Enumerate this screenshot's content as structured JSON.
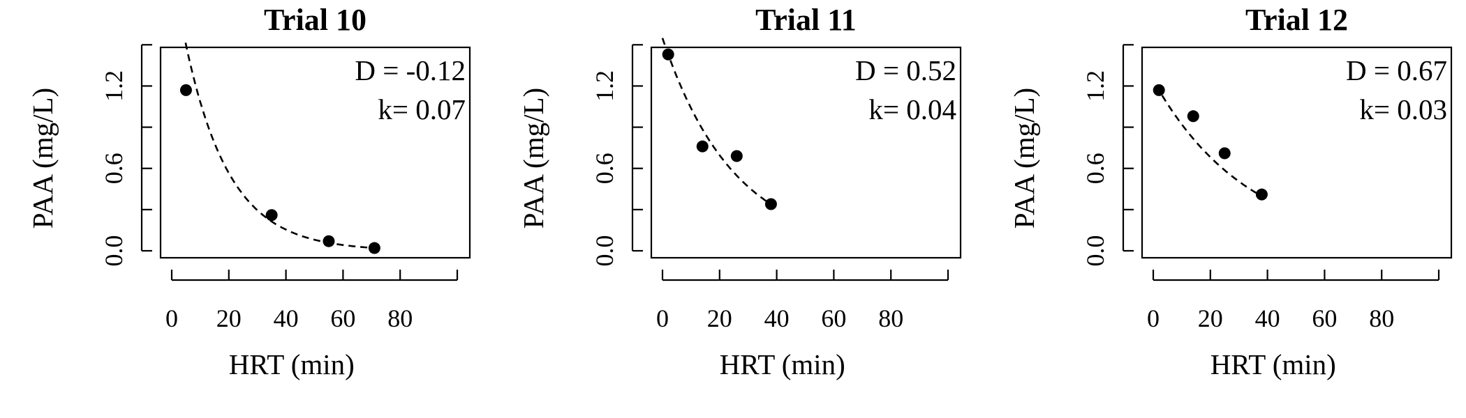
{
  "chart_data": [
    {
      "type": "scatter",
      "title": "Trial 10",
      "xlabel": "HRT (min)",
      "ylabel": "PAA (mg/L)",
      "xlim": [
        0,
        100
      ],
      "ylim": [
        0,
        1.4
      ],
      "xticks": [
        0,
        20,
        40,
        60,
        80,
        100
      ],
      "xtick_labels": [
        "0",
        "20",
        "40",
        "60",
        "80",
        ""
      ],
      "yticks": [
        0,
        0.3,
        0.6,
        0.9,
        1.2,
        1.5
      ],
      "ytick_labels": [
        "0.0",
        "",
        "0.6",
        "",
        "1.2",
        ""
      ],
      "points": [
        {
          "x": 5,
          "y": 1.17
        },
        {
          "x": 35,
          "y": 0.26
        },
        {
          "x": 55,
          "y": 0.07
        },
        {
          "x": 71,
          "y": 0.02
        }
      ],
      "fit": {
        "D": -0.12,
        "k": 0.07,
        "x_range": [
          4,
          71
        ]
      },
      "annotations": [
        "D = -0.12",
        "k= 0.07"
      ],
      "grid": false
    },
    {
      "type": "scatter",
      "title": "Trial 11",
      "xlabel": "HRT (min)",
      "ylabel": "PAA (mg/L)",
      "xlim": [
        0,
        100
      ],
      "ylim": [
        0,
        1.4
      ],
      "xticks": [
        0,
        20,
        40,
        60,
        80,
        100
      ],
      "xtick_labels": [
        "0",
        "20",
        "40",
        "60",
        "80",
        ""
      ],
      "yticks": [
        0,
        0.3,
        0.6,
        0.9,
        1.2,
        1.5
      ],
      "ytick_labels": [
        "0.0",
        "",
        "0.6",
        "",
        "1.2",
        ""
      ],
      "points": [
        {
          "x": 2,
          "y": 1.43
        },
        {
          "x": 14,
          "y": 0.76
        },
        {
          "x": 26,
          "y": 0.69
        },
        {
          "x": 38,
          "y": 0.34
        }
      ],
      "fit": {
        "D": 0.52,
        "k": 0.04,
        "x_range": [
          0,
          38
        ]
      },
      "annotations": [
        "D = 0.52",
        "k= 0.04"
      ],
      "grid": false
    },
    {
      "type": "scatter",
      "title": "Trial 12",
      "xlabel": "HRT (min)",
      "ylabel": "PAA (mg/L)",
      "xlim": [
        0,
        100
      ],
      "ylim": [
        0,
        1.4
      ],
      "xticks": [
        0,
        20,
        40,
        60,
        80,
        100
      ],
      "xtick_labels": [
        "0",
        "20",
        "40",
        "60",
        "80",
        ""
      ],
      "yticks": [
        0,
        0.3,
        0.6,
        0.9,
        1.2,
        1.5
      ],
      "ytick_labels": [
        "0.0",
        "",
        "0.6",
        "",
        "1.2",
        ""
      ],
      "points": [
        {
          "x": 2,
          "y": 1.17
        },
        {
          "x": 14,
          "y": 0.98
        },
        {
          "x": 25,
          "y": 0.71
        },
        {
          "x": 38,
          "y": 0.41
        }
      ],
      "fit": {
        "D": 0.67,
        "k": 0.03,
        "x_range": [
          1,
          38
        ]
      },
      "annotations": [
        "D = 0.67",
        "k= 0.03"
      ],
      "grid": false
    }
  ]
}
